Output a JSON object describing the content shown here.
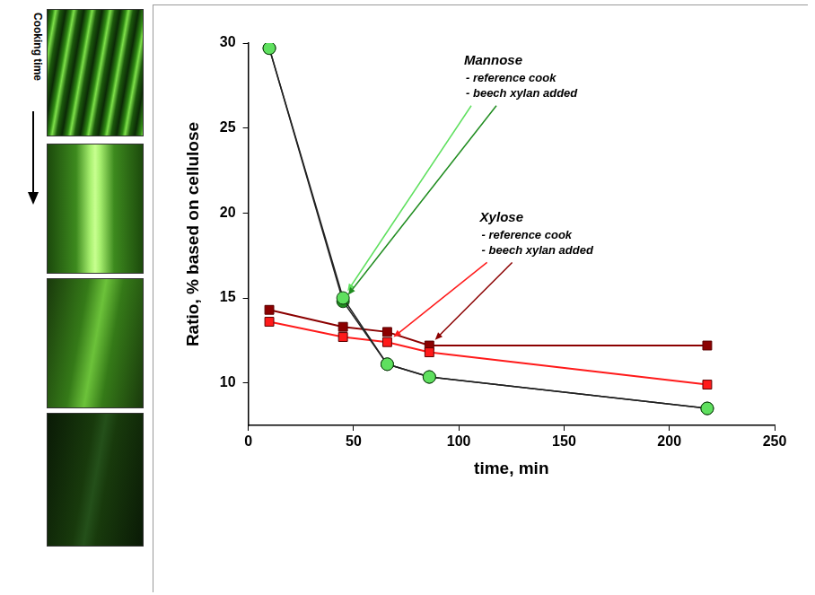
{
  "side_panel": {
    "label": "Cooking time"
  },
  "chart_data": {
    "type": "line",
    "x_label": "time, min",
    "y_label": "Ratio, % based on cellulose",
    "x": [
      10,
      45,
      66,
      86,
      218
    ],
    "xlim": [
      0,
      250
    ],
    "xticks": [
      0,
      50,
      100,
      150,
      200,
      250
    ],
    "ylim": [
      7.5,
      30
    ],
    "yticks": [
      10,
      15,
      20,
      25,
      30
    ],
    "grid": false,
    "groups": [
      {
        "name": "Mannose",
        "series": [
          {
            "name": "- reference cook",
            "color": "#5fe05f",
            "marker": "circle",
            "line_style": "solid",
            "values": [
              29.7,
              15.0,
              11.1,
              10.35,
              8.5
            ]
          },
          {
            "name": "- beech xylan added",
            "color": "#1f8c1f",
            "marker": "circle",
            "line_style": "solid",
            "values": [
              29.7,
              14.8,
              11.1,
              10.35,
              8.5
            ]
          }
        ]
      },
      {
        "name": "Xylose",
        "series": [
          {
            "name": "- reference cook",
            "color": "#ff1a1a",
            "marker": "square",
            "line_style": "solid",
            "values": [
              13.6,
              12.7,
              12.4,
              11.8,
              9.9
            ]
          },
          {
            "name": "- beech xylan added",
            "color": "#8b0000",
            "marker": "square",
            "line_style": "solid",
            "values": [
              14.3,
              13.3,
              13.0,
              12.2,
              12.2
            ]
          }
        ]
      }
    ]
  }
}
